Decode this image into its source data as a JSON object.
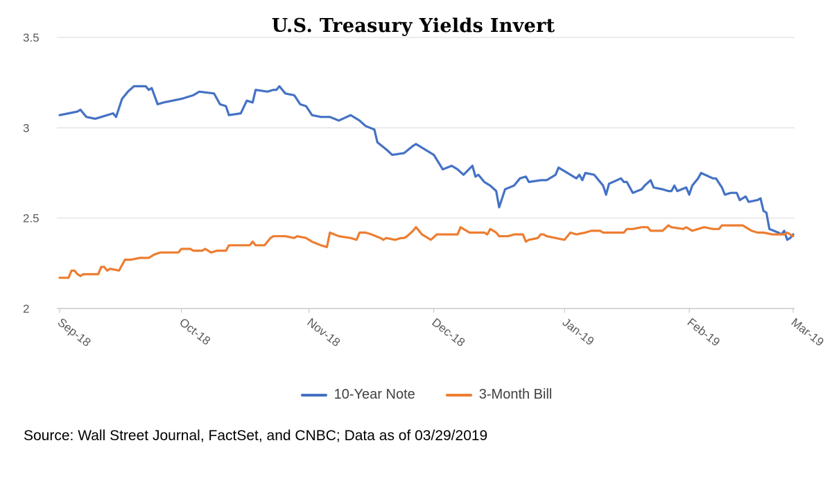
{
  "chart_data": {
    "type": "line",
    "title": "U.S. Treasury Yields Invert",
    "xlabel": "",
    "ylabel": "",
    "ylim": [
      2,
      3.5
    ],
    "yticks": [
      "2",
      "2.5",
      "3",
      "3.5"
    ],
    "xticks": [
      "Sep-18",
      "Oct-18",
      "Nov-18",
      "Dec-18",
      "Jan-19",
      "Feb-19",
      "Mar-19"
    ],
    "grid": "horizontal",
    "legend_position": "bottom",
    "series": [
      {
        "name": "10-Year Note",
        "color": "#4472C4",
        "points": [
          [
            0,
            3.07
          ],
          [
            3,
            3.08
          ],
          [
            6,
            3.09
          ],
          [
            7,
            3.1
          ],
          [
            9,
            3.06
          ],
          [
            12,
            3.05
          ],
          [
            14,
            3.06
          ],
          [
            18,
            3.08
          ],
          [
            19,
            3.06
          ],
          [
            21,
            3.16
          ],
          [
            23,
            3.2
          ],
          [
            25,
            3.23
          ],
          [
            29,
            3.23
          ],
          [
            30,
            3.21
          ],
          [
            31,
            3.22
          ],
          [
            33,
            3.13
          ],
          [
            35,
            3.14
          ],
          [
            38,
            3.15
          ],
          [
            41,
            3.16
          ],
          [
            43,
            3.17
          ],
          [
            45,
            3.18
          ],
          [
            47,
            3.2
          ],
          [
            52,
            3.19
          ],
          [
            54,
            3.13
          ],
          [
            56,
            3.12
          ],
          [
            57,
            3.07
          ],
          [
            61,
            3.08
          ],
          [
            63,
            3.15
          ],
          [
            65,
            3.14
          ],
          [
            66,
            3.21
          ],
          [
            70,
            3.2
          ],
          [
            72,
            3.21
          ],
          [
            73,
            3.21
          ],
          [
            74,
            3.23
          ],
          [
            76,
            3.19
          ],
          [
            79,
            3.18
          ],
          [
            81,
            3.13
          ],
          [
            83,
            3.12
          ],
          [
            85,
            3.07
          ],
          [
            88,
            3.06
          ],
          [
            91,
            3.06
          ],
          [
            94,
            3.04
          ],
          [
            98,
            3.07
          ],
          [
            101,
            3.04
          ],
          [
            103,
            3.01
          ],
          [
            106,
            2.99
          ],
          [
            107,
            2.92
          ],
          [
            110,
            2.88
          ],
          [
            112,
            2.85
          ],
          [
            116,
            2.86
          ],
          [
            119,
            2.9
          ],
          [
            120,
            2.91
          ],
          [
            126,
            2.85
          ],
          [
            129,
            2.77
          ],
          [
            132,
            2.79
          ],
          [
            134,
            2.77
          ],
          [
            136,
            2.74
          ],
          [
            139,
            2.79
          ],
          [
            140,
            2.73
          ],
          [
            141,
            2.74
          ],
          [
            143,
            2.7
          ],
          [
            145,
            2.68
          ],
          [
            147,
            2.65
          ],
          [
            148,
            2.56
          ],
          [
            150,
            2.66
          ],
          [
            153,
            2.68
          ],
          [
            155,
            2.72
          ],
          [
            157,
            2.73
          ],
          [
            158,
            2.7
          ],
          [
            162,
            2.71
          ],
          [
            164,
            2.71
          ],
          [
            167,
            2.74
          ],
          [
            168,
            2.78
          ],
          [
            171,
            2.75
          ],
          [
            174,
            2.72
          ],
          [
            175,
            2.74
          ],
          [
            176,
            2.71
          ],
          [
            177,
            2.75
          ],
          [
            180,
            2.74
          ],
          [
            181,
            2.72
          ],
          [
            183,
            2.68
          ],
          [
            184,
            2.63
          ],
          [
            185,
            2.69
          ],
          [
            189,
            2.72
          ],
          [
            190,
            2.7
          ],
          [
            191,
            2.7
          ],
          [
            193,
            2.64
          ],
          [
            196,
            2.66
          ],
          [
            197,
            2.68
          ],
          [
            199,
            2.71
          ],
          [
            200,
            2.67
          ],
          [
            203,
            2.66
          ],
          [
            205,
            2.65
          ],
          [
            206,
            2.65
          ],
          [
            207,
            2.68
          ],
          [
            208,
            2.65
          ],
          [
            211,
            2.67
          ],
          [
            212,
            2.63
          ],
          [
            213,
            2.68
          ],
          [
            215,
            2.72
          ],
          [
            216,
            2.75
          ],
          [
            220,
            2.72
          ],
          [
            221,
            2.72
          ],
          [
            223,
            2.67
          ],
          [
            224,
            2.63
          ],
          [
            226,
            2.64
          ],
          [
            228,
            2.64
          ],
          [
            229,
            2.6
          ],
          [
            231,
            2.62
          ],
          [
            232,
            2.59
          ],
          [
            235,
            2.6
          ],
          [
            236,
            2.61
          ],
          [
            237,
            2.54
          ],
          [
            238,
            2.53
          ],
          [
            239,
            2.44
          ],
          [
            242,
            2.42
          ],
          [
            243,
            2.41
          ],
          [
            244,
            2.43
          ],
          [
            245,
            2.38
          ],
          [
            246,
            2.39
          ],
          [
            247,
            2.41
          ]
        ]
      },
      {
        "name": "3-Month Bill",
        "color": "#ED7D31",
        "points": [
          [
            0,
            2.17
          ],
          [
            3,
            2.17
          ],
          [
            4,
            2.21
          ],
          [
            5,
            2.21
          ],
          [
            6,
            2.19
          ],
          [
            7,
            2.18
          ],
          [
            8,
            2.19
          ],
          [
            10,
            2.19
          ],
          [
            13,
            2.19
          ],
          [
            14,
            2.23
          ],
          [
            15,
            2.23
          ],
          [
            16,
            2.21
          ],
          [
            17,
            2.22
          ],
          [
            20,
            2.21
          ],
          [
            22,
            2.27
          ],
          [
            24,
            2.27
          ],
          [
            27,
            2.28
          ],
          [
            30,
            2.28
          ],
          [
            32,
            2.3
          ],
          [
            34,
            2.31
          ],
          [
            40,
            2.31
          ],
          [
            41,
            2.33
          ],
          [
            44,
            2.33
          ],
          [
            45,
            2.32
          ],
          [
            48,
            2.32
          ],
          [
            49,
            2.33
          ],
          [
            51,
            2.31
          ],
          [
            53,
            2.32
          ],
          [
            56,
            2.32
          ],
          [
            57,
            2.35
          ],
          [
            59,
            2.35
          ],
          [
            62,
            2.35
          ],
          [
            64,
            2.35
          ],
          [
            65,
            2.37
          ],
          [
            66,
            2.35
          ],
          [
            69,
            2.35
          ],
          [
            71,
            2.39
          ],
          [
            72,
            2.4
          ],
          [
            76,
            2.4
          ],
          [
            79,
            2.39
          ],
          [
            80,
            2.4
          ],
          [
            83,
            2.39
          ],
          [
            85,
            2.37
          ],
          [
            88,
            2.35
          ],
          [
            90,
            2.34
          ],
          [
            91,
            2.42
          ],
          [
            94,
            2.4
          ],
          [
            98,
            2.39
          ],
          [
            100,
            2.38
          ],
          [
            101,
            2.42
          ],
          [
            103,
            2.42
          ],
          [
            105,
            2.41
          ],
          [
            108,
            2.39
          ],
          [
            109,
            2.38
          ],
          [
            110,
            2.39
          ],
          [
            113,
            2.38
          ],
          [
            115,
            2.39
          ],
          [
            116,
            2.39
          ],
          [
            117,
            2.4
          ],
          [
            119,
            2.43
          ],
          [
            120,
            2.45
          ],
          [
            122,
            2.41
          ],
          [
            125,
            2.38
          ],
          [
            127,
            2.41
          ],
          [
            131,
            2.41
          ],
          [
            134,
            2.41
          ],
          [
            135,
            2.45
          ],
          [
            138,
            2.42
          ],
          [
            141,
            2.42
          ],
          [
            143,
            2.42
          ],
          [
            144,
            2.41
          ],
          [
            145,
            2.44
          ],
          [
            147,
            2.42
          ],
          [
            148,
            2.4
          ],
          [
            151,
            2.4
          ],
          [
            153,
            2.41
          ],
          [
            156,
            2.41
          ],
          [
            157,
            2.37
          ],
          [
            158,
            2.38
          ],
          [
            161,
            2.39
          ],
          [
            162,
            2.41
          ],
          [
            163,
            2.41
          ],
          [
            164,
            2.4
          ],
          [
            167,
            2.39
          ],
          [
            170,
            2.38
          ],
          [
            172,
            2.42
          ],
          [
            174,
            2.41
          ],
          [
            177,
            2.42
          ],
          [
            179,
            2.43
          ],
          [
            182,
            2.43
          ],
          [
            183,
            2.42
          ],
          [
            186,
            2.42
          ],
          [
            190,
            2.42
          ],
          [
            191,
            2.44
          ],
          [
            193,
            2.44
          ],
          [
            196,
            2.45
          ],
          [
            198,
            2.45
          ],
          [
            199,
            2.43
          ],
          [
            203,
            2.43
          ],
          [
            205,
            2.46
          ],
          [
            206,
            2.45
          ],
          [
            210,
            2.44
          ],
          [
            211,
            2.45
          ],
          [
            213,
            2.43
          ],
          [
            215,
            2.44
          ],
          [
            217,
            2.45
          ],
          [
            220,
            2.44
          ],
          [
            222,
            2.44
          ],
          [
            223,
            2.46
          ],
          [
            226,
            2.46
          ],
          [
            230,
            2.46
          ],
          [
            231,
            2.45
          ],
          [
            233,
            2.43
          ],
          [
            235,
            2.42
          ],
          [
            237,
            2.42
          ],
          [
            240,
            2.41
          ],
          [
            242,
            2.41
          ],
          [
            244,
            2.41
          ],
          [
            245,
            2.42
          ],
          [
            246,
            2.41
          ],
          [
            247,
            2.4
          ]
        ]
      }
    ]
  },
  "source_note": "Source: Wall Street Journal, FactSet, and CNBC; Data as of 03/29/2019"
}
